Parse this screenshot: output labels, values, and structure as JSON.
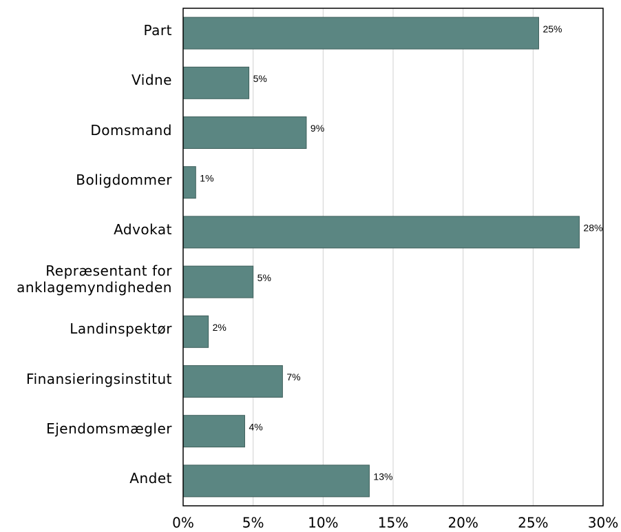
{
  "chart_data": {
    "type": "barh",
    "categories": [
      "Part",
      "Vidne",
      "Domsmand",
      "Boligdommer",
      "Advokat",
      "Repræsentant for anklagemyndigheden",
      "Landinspektør",
      "Finansieringsinstitut",
      "Ejendomsmægler",
      "Andet"
    ],
    "values": [
      25.4,
      4.7,
      8.8,
      0.9,
      28.3,
      5.0,
      1.8,
      7.1,
      4.4,
      13.3
    ],
    "value_labels": [
      "25%",
      "5%",
      "9%",
      "1%",
      "28%",
      "5%",
      "2%",
      "7%",
      "4%",
      "13%"
    ],
    "color": "#5b8682",
    "xlim": [
      0,
      30
    ],
    "xticks": [
      {
        "value": 0,
        "label": "0%"
      },
      {
        "value": 5,
        "label": "5%"
      },
      {
        "value": 10,
        "label": "10%"
      },
      {
        "value": 15,
        "label": "15%"
      },
      {
        "value": 20,
        "label": "20%"
      },
      {
        "value": 25,
        "label": "25%"
      },
      {
        "value": 30,
        "label": "30%"
      }
    ],
    "grid": true
  }
}
